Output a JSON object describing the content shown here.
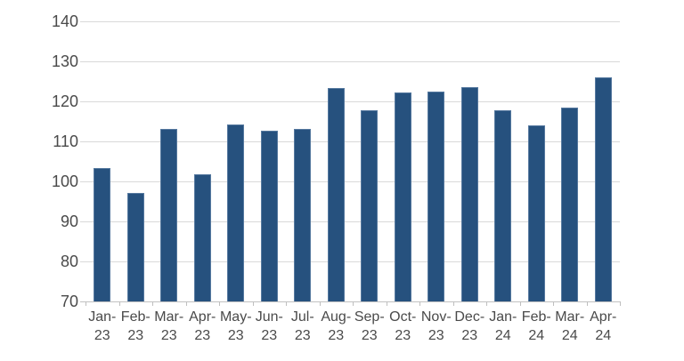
{
  "chart_data": {
    "type": "bar",
    "categories": [
      "Jan-23",
      "Feb-23",
      "Mar-23",
      "Apr-23",
      "May-23",
      "Jun-23",
      "Jul-23",
      "Aug-23",
      "Sep-23",
      "Oct-23",
      "Nov-23",
      "Dec-23",
      "Jan-24",
      "Feb-24",
      "Mar-24",
      "Apr-24"
    ],
    "values": [
      103.3,
      97.2,
      113.2,
      101.8,
      114.2,
      112.7,
      113.1,
      123.3,
      117.7,
      122.3,
      122.4,
      123.6,
      117.7,
      113.9,
      118.5,
      126.0
    ],
    "yticks": [
      70,
      80,
      90,
      100,
      110,
      120,
      130,
      140
    ],
    "ylim": [
      70,
      140
    ],
    "grid": true,
    "legend": false,
    "colors": {
      "bar_fill": "#26517e",
      "bar_border": "#56799f",
      "gridline": "#d9d9d9",
      "axis_line": "#c2c2c2",
      "tick": "#bfbfbf",
      "label_text": "#4a4a4a",
      "background": "#ffffff"
    }
  }
}
